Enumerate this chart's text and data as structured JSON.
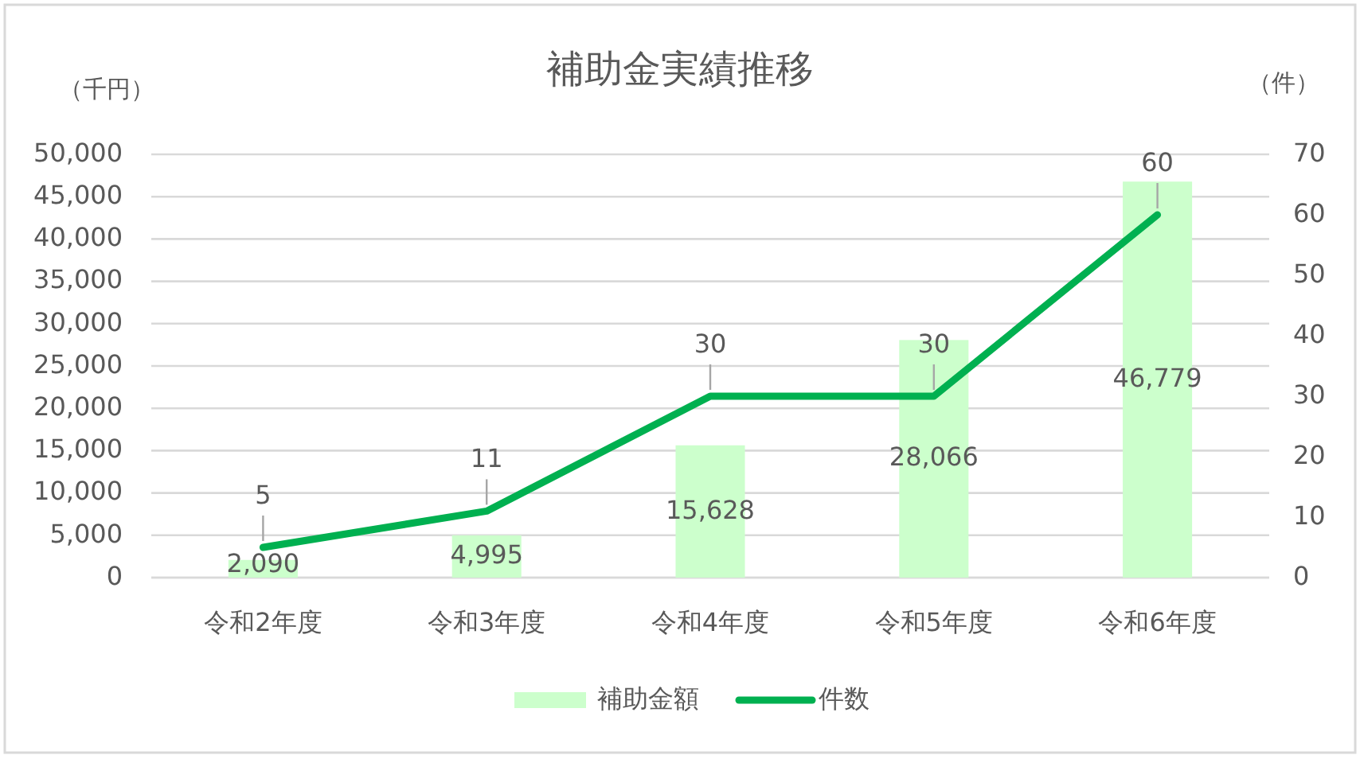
{
  "chart_data": {
    "type": "bar",
    "title": "補助金実績推移",
    "ylabel": "（千円）",
    "y2label": "（件）",
    "categories": [
      "令和2年度",
      "令和3年度",
      "令和4年度",
      "令和5年度",
      "令和6年度"
    ],
    "series": [
      {
        "name": "補助金額",
        "color": "#ccffcc",
        "values": [
          2090,
          4995,
          15628,
          28066,
          46779
        ],
        "value_labels": [
          "2,090",
          "4,995",
          "15,628",
          "28,066",
          "46,779"
        ]
      },
      {
        "name": "件数",
        "type": "line",
        "axis": "y2",
        "color": "#00b050",
        "values": [
          5,
          11,
          30,
          30,
          60
        ],
        "value_labels": [
          "5",
          "11",
          "30",
          "30",
          "60"
        ]
      }
    ],
    "ylim": [
      0,
      50000
    ],
    "yticks": [
      0,
      {
        "value": 5000,
        "label": "5,000"
      },
      {
        "value": 10000,
        "label": "10,000"
      },
      {
        "value": 15000,
        "label": "15,000"
      },
      {
        "value": 20000,
        "label": "20,000"
      },
      {
        "value": 25000,
        "label": "25,000"
      },
      {
        "value": 30000,
        "label": "30,000"
      },
      {
        "value": 35000,
        "label": "35,000"
      },
      {
        "value": 40000,
        "label": "40,000"
      },
      {
        "value": 45000,
        "label": "45,000"
      },
      {
        "value": 50000,
        "label": "50,000"
      }
    ],
    "y2lim": [
      0,
      70
    ],
    "y2ticks": [
      0,
      10,
      20,
      30,
      40,
      50,
      60,
      70
    ],
    "grid": "y",
    "legend": "bottom"
  }
}
